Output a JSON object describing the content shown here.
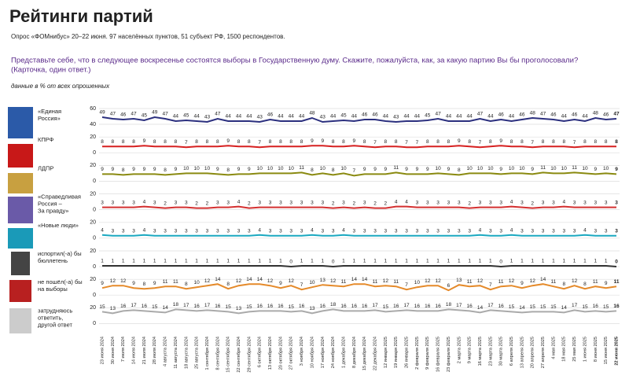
{
  "header": {
    "title": "Рейтинги партий",
    "subtitle": "Опрос «ФОМнибус» 20–22 июня. 97 населённых пунктов, 51 субъект РФ, 1500 респондентов.",
    "question": [
      "Представьте себе, что в следующее воскресенье состоятся выборы в Государственную думу. Скажите, пожалуйста, как, за какую партию Вы бы проголосовали?",
      "(Карточка, один ответ.)"
    ],
    "note": "данные в % от всех опрошенных"
  },
  "chart_data": [
    {
      "type": "line",
      "label": [
        "«Единая",
        "Россия»"
      ],
      "color": "#2b2f7e",
      "ylim": [
        40,
        60
      ],
      "yticks": [
        40,
        60
      ],
      "values": [
        49,
        47,
        46,
        47,
        45,
        49,
        47,
        44,
        45,
        44,
        43,
        47,
        44,
        44,
        44,
        43,
        46,
        44,
        44,
        44,
        48,
        43,
        44,
        45,
        44,
        46,
        46,
        44,
        43,
        44,
        44,
        45,
        47,
        44,
        44,
        44,
        47,
        44,
        46,
        44,
        46,
        48,
        47,
        46,
        44,
        46,
        44,
        48,
        46,
        47
      ]
    },
    {
      "type": "line",
      "label": [
        "КПРФ"
      ],
      "color": "#d62020",
      "ylim": [
        0,
        20
      ],
      "yticks": [
        0,
        20
      ],
      "values": [
        8,
        8,
        8,
        8,
        9,
        8,
        8,
        8,
        7,
        8,
        8,
        8,
        9,
        8,
        8,
        7,
        8,
        8,
        8,
        8,
        9,
        9,
        8,
        8,
        9,
        8,
        7,
        8,
        8,
        7,
        7,
        8,
        8,
        8,
        9,
        8,
        7,
        8,
        9,
        8,
        8,
        7,
        8,
        8,
        8,
        7,
        8,
        8,
        8,
        8
      ]
    },
    {
      "type": "line",
      "label": [
        "ЛДПР"
      ],
      "color": "#8a8a10",
      "ylim": [
        0,
        20
      ],
      "yticks": [
        0,
        20
      ],
      "values": [
        9,
        9,
        8,
        9,
        9,
        9,
        8,
        9,
        10,
        10,
        10,
        9,
        8,
        9,
        9,
        10,
        10,
        10,
        10,
        11,
        8,
        10,
        8,
        10,
        7,
        9,
        9,
        9,
        11,
        9,
        9,
        9,
        10,
        9,
        8,
        10,
        10,
        10,
        9,
        10,
        10,
        9,
        11,
        10,
        10,
        11,
        10,
        9,
        10,
        9
      ]
    },
    {
      "type": "line",
      "label": [
        "«Справедливая",
        "Россия –",
        "За правду»"
      ],
      "color": "#d43030",
      "ylim": [
        0,
        20
      ],
      "yticks": [
        0,
        20
      ],
      "values": [
        3,
        3,
        3,
        3,
        4,
        3,
        2,
        3,
        3,
        2,
        2,
        3,
        3,
        4,
        2,
        3,
        3,
        3,
        3,
        3,
        3,
        3,
        2,
        3,
        2,
        3,
        2,
        2,
        4,
        4,
        3,
        3,
        3,
        3,
        3,
        2,
        3,
        3,
        3,
        4,
        3,
        2,
        3,
        3,
        4,
        3,
        3,
        3,
        3,
        3
      ]
    },
    {
      "type": "line",
      "label": [
        "«Новые люди»"
      ],
      "color": "#1aa8c0",
      "ylim": [
        0,
        20
      ],
      "yticks": [
        0,
        20
      ],
      "values": [
        4,
        3,
        3,
        3,
        4,
        3,
        3,
        3,
        3,
        3,
        3,
        3,
        3,
        3,
        3,
        4,
        3,
        3,
        3,
        3,
        4,
        3,
        3,
        4,
        3,
        3,
        3,
        3,
        3,
        3,
        3,
        3,
        3,
        3,
        3,
        3,
        4,
        3,
        3,
        4,
        3,
        3,
        3,
        3,
        3,
        3,
        4,
        3,
        3,
        3
      ]
    },
    {
      "type": "line",
      "label": [
        "испортил(-а) бы",
        "бюллетень"
      ],
      "color": "#333333",
      "ylim": [
        0,
        20
      ],
      "yticks": [
        0,
        20
      ],
      "values": [
        1,
        1,
        1,
        1,
        1,
        1,
        1,
        1,
        1,
        1,
        1,
        1,
        1,
        1,
        1,
        1,
        1,
        1,
        0,
        1,
        1,
        1,
        0,
        1,
        1,
        1,
        1,
        1,
        1,
        1,
        1,
        1,
        1,
        1,
        1,
        1,
        1,
        1,
        0,
        1,
        1,
        1,
        1,
        1,
        1,
        1,
        1,
        1,
        1,
        0
      ]
    },
    {
      "type": "line",
      "label": [
        "не пошёл(-а) бы",
        "на выборы"
      ],
      "color": "#e58a2a",
      "ylim": [
        0,
        20
      ],
      "yticks": [
        0,
        20
      ],
      "values": [
        9,
        12,
        12,
        9,
        8,
        9,
        11,
        11,
        8,
        10,
        12,
        14,
        8,
        12,
        14,
        14,
        12,
        9,
        12,
        7,
        10,
        13,
        12,
        11,
        14,
        14,
        11,
        12,
        11,
        7,
        10,
        12,
        12,
        6,
        13,
        11,
        12,
        7,
        11,
        12,
        9,
        12,
        14,
        11,
        8,
        12,
        8,
        11,
        9,
        11
      ]
    },
    {
      "type": "line",
      "label": [
        "затрудняюсь",
        "ответить,",
        "другой ответ"
      ],
      "color": "#aaaaaa",
      "ylim": [
        0,
        20
      ],
      "yticks": [
        0,
        20
      ],
      "values": [
        15,
        13,
        16,
        17,
        16,
        15,
        14,
        18,
        17,
        16,
        17,
        16,
        15,
        13,
        15,
        16,
        16,
        16,
        15,
        16,
        13,
        16,
        18,
        16,
        16,
        16,
        17,
        15,
        16,
        17,
        16,
        16,
        16,
        18,
        17,
        16,
        14,
        17,
        16,
        15,
        14,
        15,
        15,
        15,
        14,
        17,
        15,
        16,
        15,
        16
      ],
      "categories": [
        "23 июня 2024",
        "30 июня 2024",
        "7 июля 2024",
        "14 июля 2024",
        "21 июля 2024",
        "28 июля 2024",
        "4 августа 2024",
        "11 августа 2024",
        "18 августа 2024",
        "25 августа 2024",
        "1 сентября 2024",
        "8 сентября 2024",
        "15 сентября 2024",
        "22 сентября 2024",
        "29 сентября 2024",
        "6 октября 2024",
        "13 октября 2024",
        "20 октября 2024",
        "27 октября 2024",
        "3 ноября 2024",
        "10 ноября 2024",
        "17 ноября 2024",
        "24 ноября 2024",
        "1 декабря 2024",
        "8 декабря 2024",
        "15 декабря 2024",
        "22 декабря 2024",
        "12 января 2025",
        "19 января 2025",
        "26 января 2025",
        "2 февраля 2025",
        "9 февраля 2025",
        "16 февраля 2025",
        "23 февраля 2025",
        "2 марта 2025",
        "9 марта 2025",
        "16 марта 2025",
        "23 марта 2025",
        "30 марта 2025",
        "6 апреля 2025",
        "13 апреля 2025",
        "20 апреля 2025",
        "27 апреля 2025",
        "4 мая 2025",
        "18 мая 2025",
        "25 мая 2025",
        "1 июня 2025",
        "8 июня 2025",
        "15 июня 2025",
        "22 июня 2025"
      ]
    }
  ]
}
